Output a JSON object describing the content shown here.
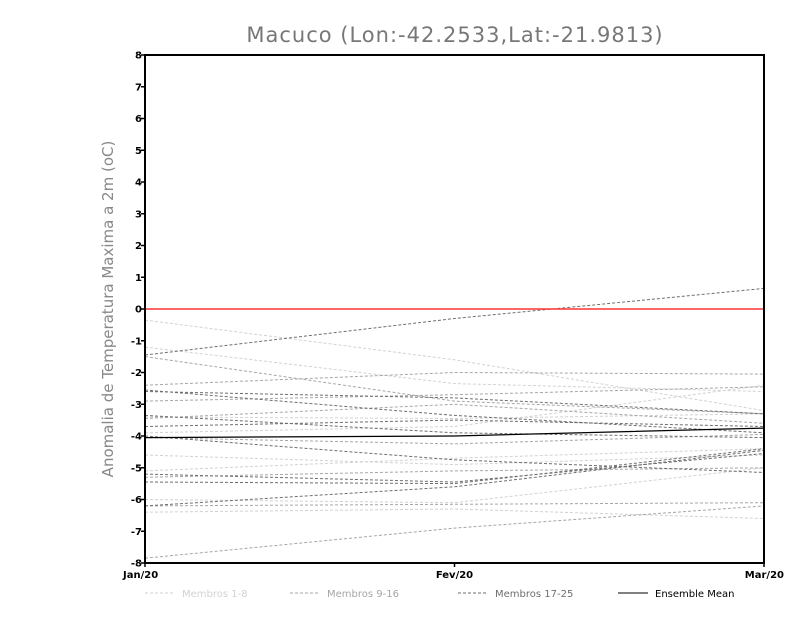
{
  "chart_data": {
    "type": "line",
    "title": "Macuco (Lon:-42.2533,Lat:-21.9813)",
    "xlabel": "",
    "ylabel": "Anomalia de Temperatura Maxima a 2m (oC)",
    "categories": [
      "Jan/20",
      "Fev/20",
      "Mar/20"
    ],
    "ylim": [
      -8,
      8
    ],
    "yticks": [
      -8,
      -7,
      -6,
      -5,
      -4,
      -3,
      -2,
      -1,
      0,
      1,
      2,
      3,
      4,
      5,
      6,
      7,
      8
    ],
    "reference_line": {
      "y": 0,
      "color": "#ff3333"
    },
    "legend": [
      {
        "label": "Membros 1-8",
        "color": "#d2d2d2",
        "style": "dashed"
      },
      {
        "label": "Membros 9-16",
        "color": "#a6a6a6",
        "style": "dashed"
      },
      {
        "label": "Membros 17-25",
        "color": "#6e6e6e",
        "style": "dashed"
      },
      {
        "label": "Ensemble Mean",
        "color": "#000000",
        "style": "solid"
      }
    ],
    "series": [
      {
        "group": 1,
        "values": [
          -0.35,
          -1.6,
          -3.2
        ]
      },
      {
        "group": 1,
        "values": [
          -1.2,
          -2.35,
          -2.6
        ]
      },
      {
        "group": 1,
        "values": [
          -3.4,
          -3.45,
          -3.3
        ]
      },
      {
        "group": 1,
        "values": [
          -3.9,
          -3.7,
          -2.4
        ]
      },
      {
        "group": 1,
        "values": [
          -4.6,
          -4.9,
          -4.6
        ]
      },
      {
        "group": 1,
        "values": [
          -5.1,
          -4.7,
          -4.4
        ]
      },
      {
        "group": 1,
        "values": [
          -6.0,
          -6.1,
          -5.0
        ]
      },
      {
        "group": 1,
        "values": [
          -6.4,
          -6.3,
          -6.6
        ]
      },
      {
        "group": 2,
        "values": [
          -1.5,
          -2.9,
          -3.3
        ]
      },
      {
        "group": 2,
        "values": [
          -2.4,
          -2.0,
          -2.05
        ]
      },
      {
        "group": 2,
        "values": [
          -2.9,
          -2.7,
          -2.45
        ]
      },
      {
        "group": 2,
        "values": [
          -3.45,
          -3.0,
          -3.6
        ]
      },
      {
        "group": 2,
        "values": [
          -4.05,
          -4.25,
          -3.95
        ]
      },
      {
        "group": 2,
        "values": [
          -5.3,
          -5.1,
          -5.0
        ]
      },
      {
        "group": 2,
        "values": [
          -6.2,
          -6.15,
          -6.1
        ]
      },
      {
        "group": 2,
        "values": [
          -7.85,
          -6.9,
          -6.2
        ]
      },
      {
        "group": 3,
        "values": [
          -1.45,
          -0.3,
          0.65
        ]
      },
      {
        "group": 3,
        "values": [
          -2.6,
          -2.8,
          -3.3
        ]
      },
      {
        "group": 3,
        "values": [
          -2.55,
          -3.35,
          -3.9
        ]
      },
      {
        "group": 3,
        "values": [
          -3.35,
          -3.9,
          -4.05
        ]
      },
      {
        "group": 3,
        "values": [
          -3.7,
          -3.5,
          -3.7
        ]
      },
      {
        "group": 3,
        "values": [
          -4.0,
          -4.75,
          -5.15
        ]
      },
      {
        "group": 3,
        "values": [
          -5.2,
          -5.45,
          -4.55
        ]
      },
      {
        "group": 3,
        "values": [
          -5.45,
          -5.5,
          -4.4
        ]
      },
      {
        "group": 3,
        "values": [
          -6.2,
          -5.6,
          -4.45
        ]
      },
      {
        "group": 4,
        "name": "Ensemble Mean",
        "values": [
          -4.05,
          -4.0,
          -3.75
        ]
      }
    ]
  }
}
